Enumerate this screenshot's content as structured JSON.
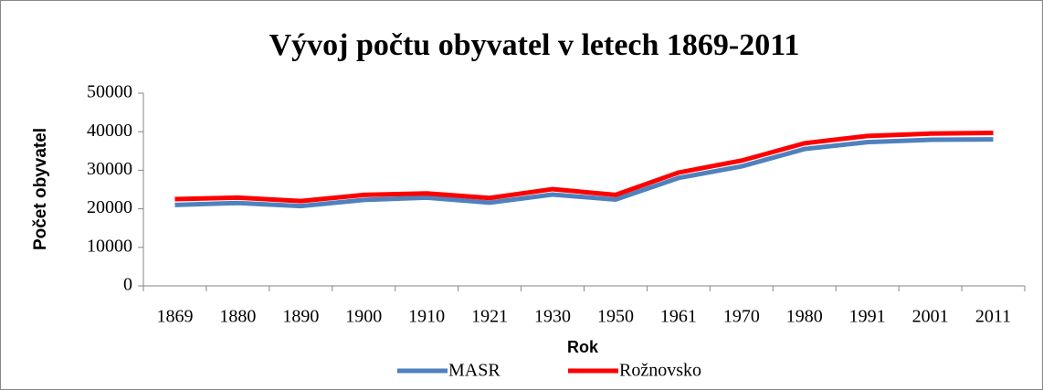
{
  "chart_data": {
    "type": "line",
    "title": "Vývoj počtu obyvatel v letech 1869-2011",
    "x_label": "Rok",
    "y_label": "Počet obyvatel",
    "categories": [
      "1869",
      "1880",
      "1890",
      "1900",
      "1910",
      "1921",
      "1930",
      "1950",
      "1961",
      "1970",
      "1980",
      "1991",
      "2001",
      "2011"
    ],
    "series": [
      {
        "name": "MASR",
        "color": "#4f81bd",
        "values": [
          21000,
          21500,
          20700,
          22300,
          22900,
          21600,
          23700,
          22400,
          28000,
          31000,
          35500,
          37300,
          37900,
          38000
        ]
      },
      {
        "name": "Rožnovsko",
        "color": "#ff0000",
        "values": [
          22500,
          22900,
          22000,
          23600,
          24000,
          22800,
          25100,
          23600,
          29400,
          32500,
          37000,
          38900,
          39500,
          39700
        ]
      }
    ],
    "ylim": [
      0,
      50000
    ],
    "yticks": [
      0,
      10000,
      20000,
      30000,
      40000,
      50000
    ],
    "grid": false,
    "legend": "bottom"
  }
}
